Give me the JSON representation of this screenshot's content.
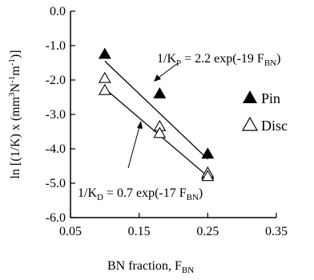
{
  "chart_data": {
    "type": "scatter",
    "xlabel": "BN fraction, F",
    "xlabel_sub": "BN",
    "ylabel_parts": {
      "pre": "ln [(1/K) x (mm",
      "sup1": "3",
      "mid1": "N",
      "sup2": "-1",
      "mid2": "m",
      "sup3": "-1",
      "post": ")]"
    },
    "xlim": [
      0.05,
      0.35
    ],
    "ylim": [
      -6.0,
      0.0
    ],
    "x_ticks": [
      {
        "value": 0.05,
        "label": "0.05"
      },
      {
        "value": 0.15,
        "label": "0.15"
      },
      {
        "value": 0.25,
        "label": "0.25"
      },
      {
        "value": 0.35,
        "label": "0.35"
      }
    ],
    "y_ticks": [
      {
        "value": 0.0,
        "label": "0.0"
      },
      {
        "value": -1.0,
        "label": "-1.0"
      },
      {
        "value": -2.0,
        "label": "-2.0"
      },
      {
        "value": -3.0,
        "label": "-3.0"
      },
      {
        "value": -4.0,
        "label": "-4.0"
      },
      {
        "value": -5.0,
        "label": "-5.0"
      },
      {
        "value": -6.0,
        "label": "-6.0"
      }
    ],
    "grid": false,
    "legend_position": "right",
    "series": [
      {
        "name": "Pin",
        "marker": "filled-triangle",
        "points": [
          [
            0.1,
            -1.25
          ],
          [
            0.18,
            -2.4
          ],
          [
            0.25,
            -4.15
          ],
          [
            0.25,
            -4.75
          ]
        ],
        "fit": {
          "x": [
            0.1,
            0.25
          ],
          "y": [
            -1.45,
            -4.3
          ]
        }
      },
      {
        "name": "Disc",
        "marker": "open-triangle",
        "points": [
          [
            0.1,
            -1.95
          ],
          [
            0.1,
            -2.3
          ],
          [
            0.18,
            -3.35
          ],
          [
            0.18,
            -3.55
          ],
          [
            0.25,
            -4.7
          ],
          [
            0.25,
            -4.8
          ]
        ],
        "fit": {
          "x": [
            0.1,
            0.25
          ],
          "y": [
            -2.25,
            -4.8
          ]
        }
      }
    ],
    "annotations": [
      {
        "pre": "1/K",
        "sub": "P",
        "mid": " = 2.2 exp(-19 F",
        "sub2": "BN",
        "post": ")"
      },
      {
        "pre": "1/K",
        "sub": "D",
        "mid": " = 0.7 exp(-17 F",
        "sub2": "BN",
        "post": ")"
      }
    ]
  }
}
